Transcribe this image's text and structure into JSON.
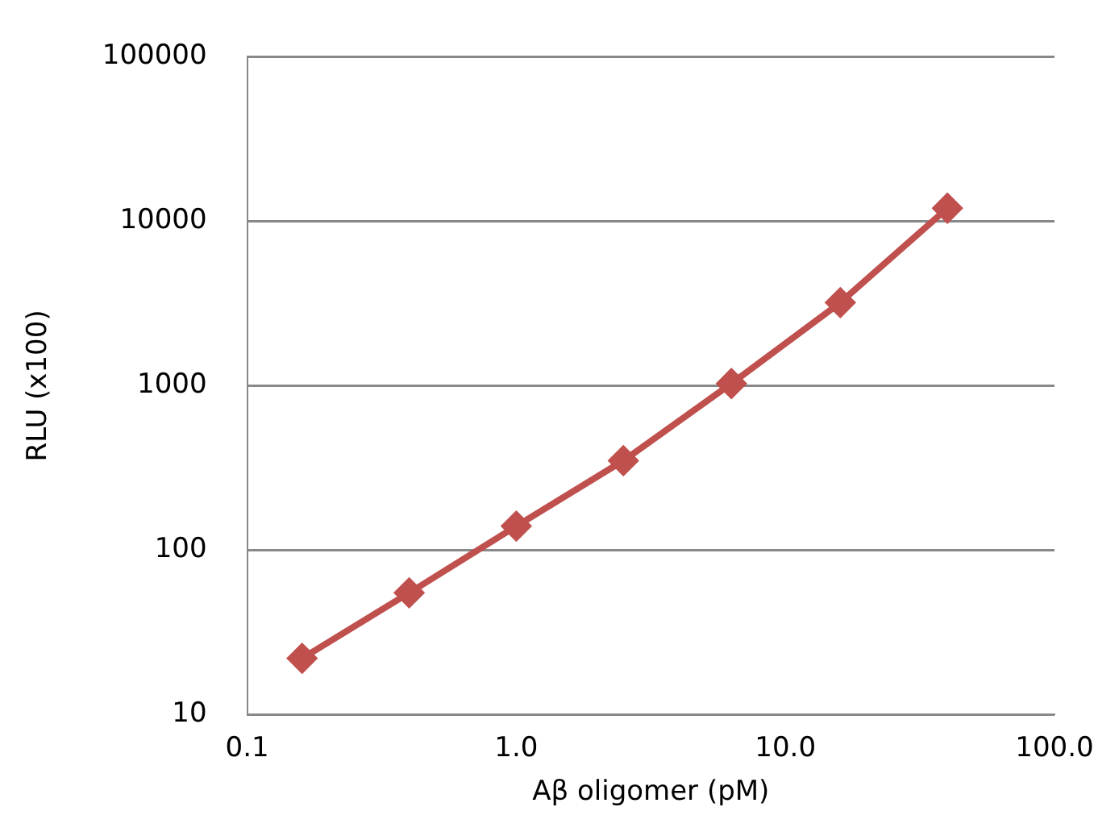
{
  "chart_data": {
    "type": "line",
    "xlabel": "Aβ oligomer (pM)",
    "ylabel": "RLU (x100)",
    "x": [
      0.16,
      0.4,
      1.0,
      2.5,
      6.3,
      16,
      40
    ],
    "series": [
      {
        "color": "#c0504d",
        "values": [
          22,
          55,
          140,
          350,
          1030,
          3200,
          12000
        ]
      }
    ],
    "log": "xy",
    "xlim": [
      0.1,
      100
    ],
    "xticks": [
      {
        "value": 0.1,
        "label": "0.1"
      },
      {
        "value": 1,
        "label": "1.0"
      },
      {
        "value": 10,
        "label": "10.0"
      },
      {
        "value": 100,
        "label": "100.0"
      }
    ],
    "ylim": [
      10,
      100000
    ],
    "yticks": [
      10,
      100,
      1000,
      10000,
      100000
    ],
    "grid": "y",
    "legend": false,
    "marker": "diamond",
    "line_style": "solid"
  }
}
